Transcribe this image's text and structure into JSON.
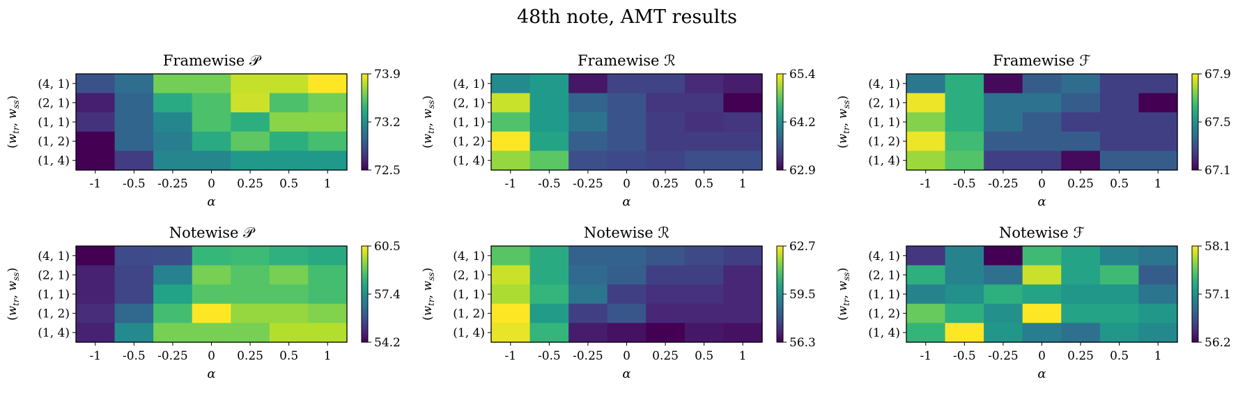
{
  "figure": {
    "title": "48th note, AMT results"
  },
  "chart_data": [
    {
      "type": "heatmap",
      "title": "Framewise 𝒫",
      "xlabel": "α",
      "ylabel": "(w_tr, w_ss)",
      "ylabel_parts": {
        "open": "(",
        "w1": "w",
        "s1": "tr",
        "sep": ", ",
        "w2": "w",
        "s2": "ss",
        "close": ")"
      },
      "x": [
        "-1",
        "-0.5",
        "-0.25",
        "0",
        "0.25",
        "0.5",
        "1"
      ],
      "y": [
        "(4, 1)",
        "(2, 1)",
        "(1, 1)",
        "(1, 2)",
        "(1, 4)"
      ],
      "values": [
        [
          72.85,
          73.0,
          73.6,
          73.6,
          73.78,
          73.78,
          73.9
        ],
        [
          72.62,
          72.95,
          73.35,
          73.5,
          73.8,
          73.5,
          73.6
        ],
        [
          72.7,
          72.95,
          73.15,
          73.5,
          73.38,
          73.65,
          73.65
        ],
        [
          72.5,
          72.95,
          73.1,
          73.35,
          73.55,
          73.38,
          73.48
        ],
        [
          72.5,
          72.75,
          73.15,
          73.15,
          73.25,
          73.25,
          73.25
        ]
      ],
      "colorbar": {
        "min": 72.5,
        "max": 73.9,
        "ticks": [
          "73.9",
          "73.2",
          "72.5"
        ]
      }
    },
    {
      "type": "heatmap",
      "title": "Framewise ℛ",
      "xlabel": "α",
      "ylabel": "(w_tr, w_ss)",
      "ylabel_parts": {
        "open": "(",
        "w1": "w",
        "s1": "tr",
        "sep": ", ",
        "w2": "w",
        "s2": "ss",
        "close": ")"
      },
      "x": [
        "-1",
        "-0.5",
        "-0.25",
        "0",
        "0.25",
        "0.5",
        "1"
      ],
      "y": [
        "(4, 1)",
        "(2, 1)",
        "(1, 1)",
        "(1, 2)",
        "(1, 4)"
      ],
      "values": [
        [
          64.1,
          64.25,
          63.05,
          63.4,
          63.4,
          63.2,
          63.1
        ],
        [
          65.2,
          64.25,
          63.7,
          63.55,
          63.3,
          63.3,
          62.9
        ],
        [
          64.7,
          64.25,
          63.85,
          63.55,
          63.35,
          63.25,
          63.3
        ],
        [
          65.4,
          64.35,
          63.65,
          63.55,
          63.35,
          63.35,
          63.35
        ],
        [
          65.0,
          64.75,
          63.5,
          63.45,
          63.4,
          63.5,
          63.5
        ]
      ],
      "colorbar": {
        "min": 62.9,
        "max": 65.4,
        "ticks": [
          "65.4",
          "64.2",
          "62.9"
        ]
      }
    },
    {
      "type": "heatmap",
      "title": "Framewise ℱ",
      "xlabel": "α",
      "ylabel": "(w_tr, w_ss)",
      "ylabel_parts": {
        "open": "(",
        "w1": "w",
        "s1": "tr",
        "sep": ", ",
        "w2": "w",
        "s2": "ss",
        "close": ")"
      },
      "x": [
        "-1",
        "-0.5",
        "-0.25",
        "0",
        "0.25",
        "0.5",
        "1"
      ],
      "y": [
        "(4, 1)",
        "(2, 1)",
        "(1, 1)",
        "(1, 2)",
        "(1, 4)"
      ],
      "values": [
        [
          67.42,
          67.6,
          67.12,
          67.33,
          67.38,
          67.25,
          67.25
        ],
        [
          67.88,
          67.6,
          67.4,
          67.4,
          67.33,
          67.25,
          67.1
        ],
        [
          67.75,
          67.6,
          67.4,
          67.33,
          67.25,
          67.25,
          67.25
        ],
        [
          67.88,
          67.65,
          67.33,
          67.33,
          67.33,
          67.25,
          67.25
        ],
        [
          67.78,
          67.68,
          67.25,
          67.25,
          67.12,
          67.33,
          67.33
        ]
      ],
      "colorbar": {
        "min": 67.1,
        "max": 67.9,
        "ticks": [
          "67.9",
          "67.5",
          "67.1"
        ]
      }
    },
    {
      "type": "heatmap",
      "title": "Notewise 𝒫",
      "xlabel": "α",
      "ylabel": "(w_tr, w_ss)",
      "ylabel_parts": {
        "open": "(",
        "w1": "w",
        "s1": "tr",
        "sep": ", ",
        "w2": "w",
        "s2": "ss",
        "close": ")"
      },
      "x": [
        "-1",
        "-0.5",
        "-0.25",
        "0",
        "0.25",
        "0.5",
        "1"
      ],
      "y": [
        "(4, 1)",
        "(2, 1)",
        "(1, 1)",
        "(1, 2)",
        "(1, 4)"
      ],
      "values": [
        [
          54.2,
          55.6,
          55.7,
          58.4,
          58.5,
          58.2,
          58.0
        ],
        [
          54.8,
          55.5,
          57.0,
          59.2,
          58.8,
          59.2,
          58.6
        ],
        [
          54.8,
          55.5,
          57.8,
          58.8,
          58.8,
          58.8,
          58.6
        ],
        [
          55.0,
          56.3,
          58.6,
          60.5,
          59.5,
          59.5,
          59.3
        ],
        [
          54.8,
          57.2,
          59.2,
          59.2,
          59.2,
          59.8,
          59.8
        ]
      ],
      "colorbar": {
        "min": 54.2,
        "max": 60.5,
        "ticks": [
          "60.5",
          "57.4",
          "54.2"
        ]
      }
    },
    {
      "type": "heatmap",
      "title": "Notewise ℛ",
      "xlabel": "α",
      "ylabel": "(w_tr, w_ss)",
      "ylabel_parts": {
        "open": "(",
        "w1": "w",
        "s1": "tr",
        "sep": ", ",
        "w2": "w",
        "s2": "ss",
        "close": ")"
      },
      "x": [
        "-1",
        "-0.5",
        "-0.25",
        "0",
        "0.25",
        "0.5",
        "1"
      ],
      "y": [
        "(4, 1)",
        "(2, 1)",
        "(1, 1)",
        "(1, 2)",
        "(1, 4)"
      ],
      "values": [
        [
          61.0,
          60.2,
          58.3,
          58.3,
          58.0,
          57.7,
          57.5
        ],
        [
          62.2,
          60.2,
          58.5,
          58.2,
          57.5,
          57.5,
          57.0
        ],
        [
          61.9,
          60.5,
          58.8,
          57.5,
          57.2,
          57.2,
          57.0
        ],
        [
          62.7,
          59.8,
          57.5,
          58.0,
          57.0,
          57.0,
          57.0
        ],
        [
          62.5,
          60.5,
          56.8,
          56.6,
          56.3,
          56.7,
          56.6
        ]
      ],
      "colorbar": {
        "min": 56.3,
        "max": 62.7,
        "ticks": [
          "62.7",
          "59.5",
          "56.3"
        ]
      }
    },
    {
      "type": "heatmap",
      "title": "Notewise ℱ",
      "xlabel": "α",
      "ylabel": "(w_tr, w_ss)",
      "ylabel_parts": {
        "open": "(",
        "w1": "w",
        "s1": "tr",
        "sep": ", ",
        "w2": "w",
        "s2": "ss",
        "close": ")"
      },
      "x": [
        "-1",
        "-0.5",
        "-0.25",
        "0",
        "0.25",
        "0.5",
        "1"
      ],
      "y": [
        "(4, 1)",
        "(2, 1)",
        "(1, 1)",
        "(1, 2)",
        "(1, 4)"
      ],
      "values": [
        [
          56.5,
          57.05,
          56.2,
          57.5,
          57.3,
          57.05,
          56.95
        ],
        [
          57.4,
          57.05,
          56.9,
          57.95,
          57.3,
          57.5,
          56.75
        ],
        [
          57.05,
          57.15,
          57.4,
          57.3,
          57.2,
          57.2,
          56.95
        ],
        [
          57.65,
          57.4,
          57.15,
          58.1,
          57.3,
          57.3,
          57.2
        ],
        [
          57.45,
          58.1,
          57.2,
          57.0,
          56.9,
          57.2,
          57.1
        ]
      ],
      "colorbar": {
        "min": 56.2,
        "max": 58.1,
        "ticks": [
          "58.1",
          "57.1",
          "56.2"
        ]
      }
    }
  ]
}
